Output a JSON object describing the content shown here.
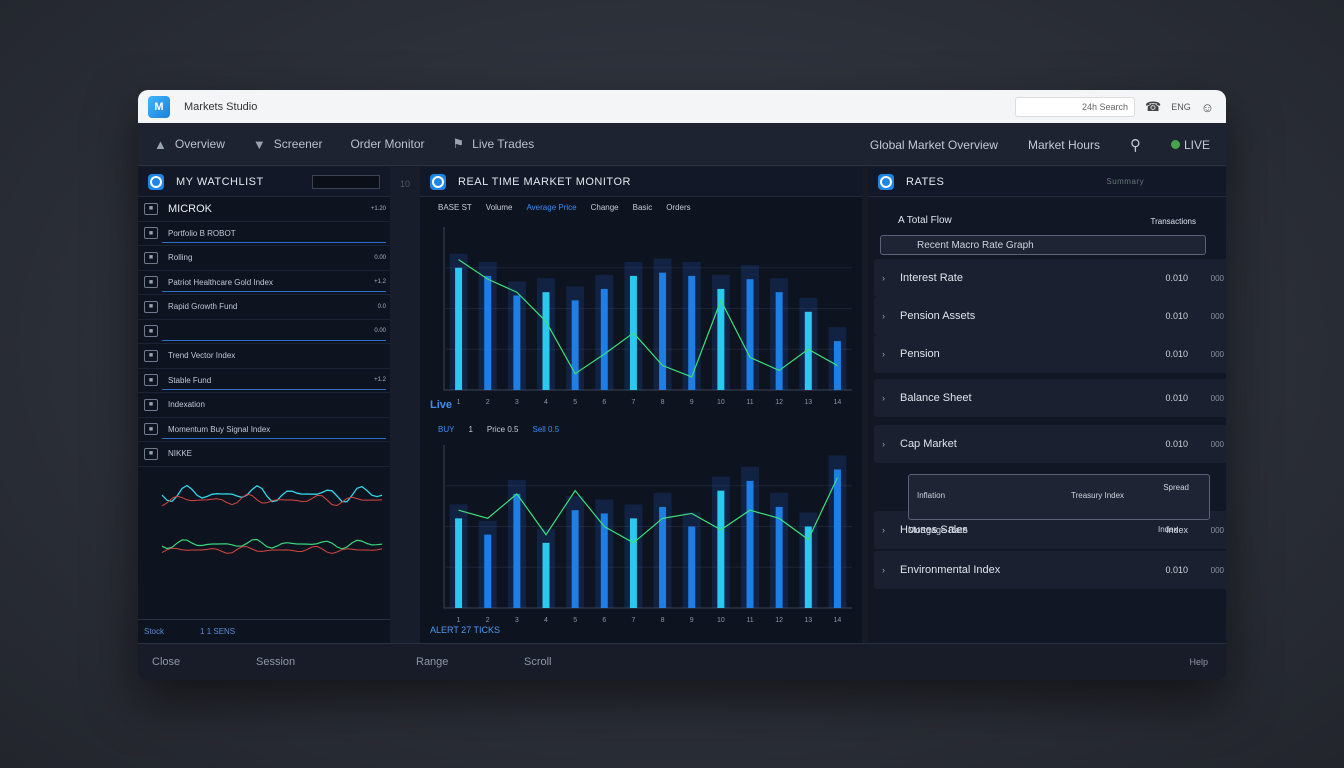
{
  "window": {
    "title": "Markets Studio",
    "search_text": "24h Search",
    "lang": "ENG"
  },
  "nav": {
    "items": [
      "Overview",
      "Screener",
      "Order Monitor",
      "Live Trades"
    ],
    "right_items": [
      "Global Market Overview",
      "Market Hours",
      "LIVE"
    ]
  },
  "watchlist": {
    "title": "MY WATCHLIST",
    "gutter_label": "10",
    "rows": [
      {
        "label": "MICROK",
        "value": "+1.20"
      },
      {
        "label": "Portfolio B ROBOT",
        "value": ""
      },
      {
        "label": "Rolling",
        "value": "0.00"
      },
      {
        "label": "Patriot Healthcare Gold Index",
        "value": "+1.2"
      },
      {
        "label": "Rapid Growth Fund",
        "value": "0.0"
      },
      {
        "label": "",
        "value": "0.00"
      },
      {
        "label": "Trend Vector Index",
        "value": ""
      },
      {
        "label": "Stable Fund",
        "value": "+1.2"
      },
      {
        "label": "Indexation",
        "value": ""
      },
      {
        "label": "Momentum Buy Signal Index",
        "value": ""
      },
      {
        "label": "NIKKE",
        "value": ""
      }
    ],
    "footer": [
      "Stock",
      "1 1 SENS"
    ]
  },
  "middle": {
    "title": "REAL TIME MARKET MONITOR",
    "legend": [
      "BASE ST",
      "Volume",
      "Average Price",
      "Change",
      "Basic",
      "Orders"
    ],
    "section2_title": "Live",
    "legend2": [
      "BUY",
      "1",
      "Price 0.5",
      "Sell 0.5"
    ],
    "footer_text": "ALERT 27 TICKS"
  },
  "chart_data": [
    {
      "type": "bar",
      "title": "Real Time Market Monitor",
      "categories": [
        "1",
        "2",
        "3",
        "4",
        "5",
        "6",
        "7",
        "8",
        "9",
        "10",
        "11",
        "12",
        "13",
        "14"
      ],
      "values": [
        75,
        70,
        58,
        60,
        55,
        62,
        70,
        72,
        70,
        62,
        68,
        60,
        48,
        30
      ],
      "series_line": [
        80,
        68,
        60,
        42,
        10,
        22,
        35,
        15,
        8,
        55,
        20,
        12,
        25,
        15
      ],
      "xlabel": "",
      "ylabel": "",
      "ylim": [
        0,
        100
      ]
    },
    {
      "type": "bar",
      "title": "Live",
      "categories": [
        "1",
        "2",
        "3",
        "4",
        "5",
        "6",
        "7",
        "8",
        "9",
        "10",
        "11",
        "12",
        "13",
        "14"
      ],
      "values": [
        55,
        45,
        70,
        40,
        60,
        58,
        55,
        62,
        50,
        72,
        78,
        62,
        50,
        85
      ],
      "series_line": [
        60,
        55,
        70,
        45,
        72,
        50,
        40,
        55,
        58,
        48,
        60,
        55,
        42,
        80
      ],
      "xlabel": "",
      "ylabel": "",
      "ylim": [
        0,
        100
      ]
    }
  ],
  "right": {
    "title": "RATES",
    "subtitle": "Summary",
    "top_label": "A Total Flow",
    "top_value": "Transactions",
    "search_label": "Recent Macro Rate Graph",
    "rows": [
      {
        "label": "Interest Rate",
        "value": "0.010",
        "ext": "000"
      },
      {
        "label": "Pension Assets",
        "value": "0.010",
        "ext": "000"
      },
      {
        "label": "Pension",
        "value": "0.010",
        "ext": "000"
      },
      {
        "label": "Balance Sheet",
        "value": "0.010",
        "ext": "000"
      },
      {
        "label": "Cap Market",
        "value": "0.010",
        "ext": "000"
      },
      {
        "label": "Houses Sales",
        "value": "Index",
        "ext": "000"
      },
      {
        "label": "Environmental Index",
        "value": "0.010",
        "ext": "000"
      }
    ],
    "box_label": "Inflation",
    "box_mid": "Treasury Index",
    "box_val": "Spread",
    "box_bottom": "Mortgage Rate",
    "box_bottom_val": "Index"
  },
  "footer": {
    "items": [
      "Close",
      "Session",
      "Range",
      "Scroll"
    ],
    "right": "Help"
  },
  "colors": {
    "accent": "#1d86e8",
    "cyan": "#27d3ff",
    "green": "#3ae07a",
    "red": "#e0463f"
  }
}
